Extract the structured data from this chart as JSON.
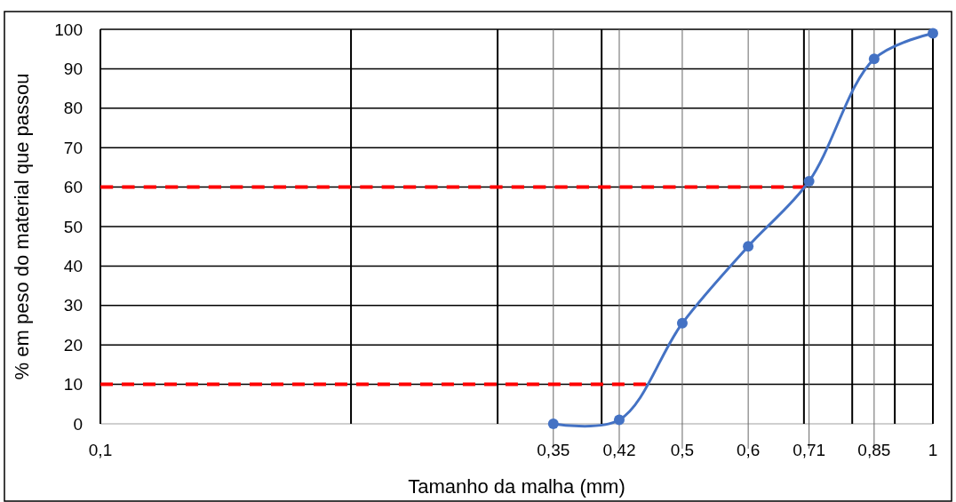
{
  "chart_data": {
    "type": "line",
    "xlabel": "Tamanho da malha (mm)",
    "ylabel": "% em peso do material que passou",
    "log": "x",
    "grid": true,
    "xlim": [
      0.1,
      1
    ],
    "xticks": [
      {
        "value": 0.1,
        "label": "0,1"
      },
      {
        "value": 0.2,
        "label": null
      },
      {
        "value": 0.3,
        "label": null
      },
      {
        "value": 0.35,
        "label": "0,35"
      },
      {
        "value": 0.4,
        "label": null
      },
      {
        "value": 0.42,
        "label": "0,42"
      },
      {
        "value": 0.5,
        "label": "0,5"
      },
      {
        "value": 0.6,
        "label": "0,6"
      },
      {
        "value": 0.7,
        "label": null
      },
      {
        "value": 0.71,
        "label": "0,71"
      },
      {
        "value": 0.8,
        "label": null
      },
      {
        "value": 0.85,
        "label": "0,85"
      },
      {
        "value": 0.9,
        "label": null
      },
      {
        "value": 1,
        "label": "1"
      }
    ],
    "ylim": [
      0,
      100
    ],
    "yticks": [
      0,
      10,
      20,
      30,
      40,
      50,
      60,
      70,
      80,
      90,
      100
    ],
    "series": [
      {
        "color": "#ff0000",
        "line_style": "dashed",
        "marker": "none",
        "x": [
          0.1,
          0.703
        ],
        "values": [
          60,
          60
        ]
      },
      {
        "color": "#ff0000",
        "line_style": "dashed",
        "marker": "none",
        "x": [
          0.1,
          0.452
        ],
        "values": [
          10,
          10
        ]
      },
      {
        "color": "#4472c4",
        "line_style": "solid",
        "marker": "circle",
        "x": [
          0.35,
          0.42,
          0.5,
          0.6,
          0.71,
          0.85,
          1
        ],
        "values": [
          0,
          1,
          25.5,
          45,
          61.5,
          92.5,
          99
        ]
      }
    ]
  }
}
